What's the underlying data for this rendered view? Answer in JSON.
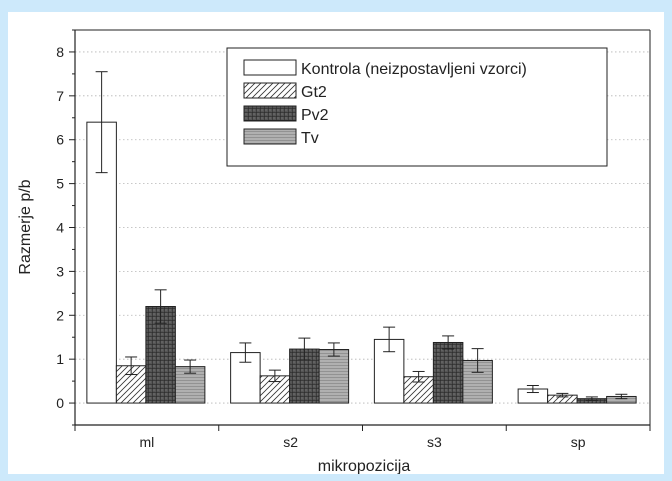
{
  "chart_data": {
    "type": "bar",
    "xlabel": "mikropozicija",
    "ylabel": "Razmerje p/b",
    "ylim": [
      -0.5,
      8.5
    ],
    "yticks": [
      0,
      1,
      2,
      3,
      4,
      5,
      6,
      7,
      8
    ],
    "categories": [
      "ml",
      "s2",
      "s3",
      "sp"
    ],
    "grid": "horizontal-dotted",
    "legend_position": "top-right",
    "series": [
      {
        "name": "Kontrola (neizpostavljeni vzorci)",
        "values": [
          6.4,
          1.15,
          1.45,
          0.32
        ],
        "errors": [
          1.15,
          0.22,
          0.28,
          0.08
        ],
        "fill": "#ffffff",
        "pattern": "none"
      },
      {
        "name": "Gt2",
        "values": [
          0.85,
          0.62,
          0.6,
          0.18
        ],
        "errors": [
          0.2,
          0.13,
          0.12,
          0.04
        ],
        "fill": "#ffffff",
        "pattern": "diagonal-hatch"
      },
      {
        "name": "Pv2",
        "values": [
          2.2,
          1.23,
          1.38,
          0.1
        ],
        "errors": [
          0.38,
          0.25,
          0.15,
          0.04
        ],
        "fill": "#4d4d4d",
        "pattern": "grid"
      },
      {
        "name": "Tv",
        "values": [
          0.83,
          1.22,
          0.97,
          0.15
        ],
        "errors": [
          0.15,
          0.15,
          0.27,
          0.05
        ],
        "fill": "#aaaaaa",
        "pattern": "horizontal-lines"
      }
    ]
  }
}
